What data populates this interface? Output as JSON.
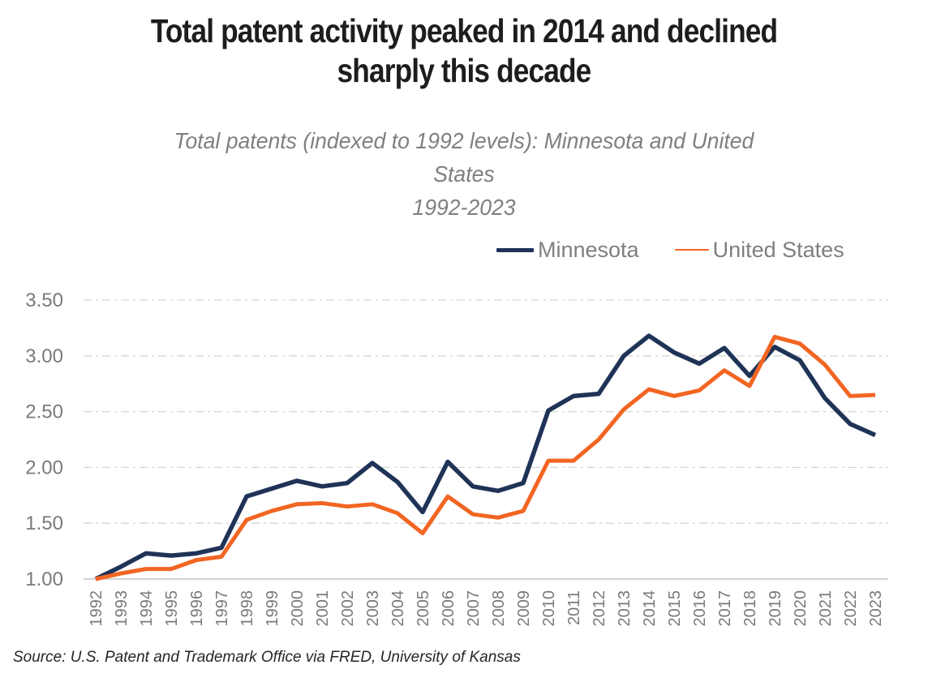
{
  "title": {
    "full_text": "Total patent activity peaked in 2014 and declined sharply this decade",
    "lines": [
      "Total patent activity peaked in 2014 and declined",
      "sharply this decade"
    ]
  },
  "subtitle": {
    "full_text": "Total patents (indexed to 1992 levels): Minnesota and United States",
    "lines": [
      "Total patents (indexed to 1992 levels): Minnesota and United",
      "States"
    ],
    "period": "1992-2023"
  },
  "legend": {
    "items": [
      {
        "label": "Minnesota",
        "color": "#1f3357",
        "swatch": "thick"
      },
      {
        "label": "United States",
        "color": "#f26522",
        "swatch": "thin"
      }
    ]
  },
  "source": "Source: U.S. Patent and Trademark Office via FRED, University of Kansas",
  "chart_data": {
    "type": "line",
    "title": "Total patents (indexed to 1992 levels): Minnesota and United States",
    "period": "1992-2023",
    "x": [
      1992,
      1993,
      1994,
      1995,
      1996,
      1997,
      1998,
      1999,
      2000,
      2001,
      2002,
      2003,
      2004,
      2005,
      2006,
      2007,
      2008,
      2009,
      2010,
      2011,
      2012,
      2013,
      2014,
      2015,
      2016,
      2017,
      2018,
      2019,
      2020,
      2021,
      2022,
      2023
    ],
    "series": [
      {
        "name": "Minnesota",
        "color": "#1f3357",
        "stroke_width": 5.5,
        "values": [
          1.0,
          1.11,
          1.23,
          1.21,
          1.23,
          1.28,
          1.74,
          1.81,
          1.88,
          1.83,
          1.86,
          2.04,
          1.87,
          1.6,
          2.05,
          1.83,
          1.79,
          1.86,
          2.51,
          2.64,
          2.66,
          3.0,
          3.18,
          3.03,
          2.93,
          3.07,
          2.82,
          3.08,
          2.96,
          2.62,
          2.39,
          2.29
        ]
      },
      {
        "name": "United States",
        "color": "#f26522",
        "stroke_width": 5,
        "values": [
          1.0,
          1.05,
          1.09,
          1.09,
          1.17,
          1.2,
          1.53,
          1.61,
          1.67,
          1.68,
          1.65,
          1.67,
          1.59,
          1.41,
          1.74,
          1.58,
          1.55,
          1.61,
          2.06,
          2.06,
          2.25,
          2.52,
          2.7,
          2.64,
          2.69,
          2.87,
          2.73,
          3.17,
          3.11,
          2.92,
          2.64,
          2.65
        ]
      }
    ],
    "ylim": [
      1.0,
      3.5
    ],
    "yticks": [
      {
        "value": 1.0,
        "label": "1.00"
      },
      {
        "value": 1.5,
        "label": "1.50"
      },
      {
        "value": 2.0,
        "label": "2.00"
      },
      {
        "value": 2.5,
        "label": "2.50"
      },
      {
        "value": 3.0,
        "label": "3.00"
      },
      {
        "value": 3.5,
        "label": "3.50"
      }
    ],
    "grid": "horizontal dash-dot",
    "grid_color": "#d6d6d6",
    "axis_color": "#c6c6c6",
    "tick_label_color": "#7a7a7a",
    "legend_position": "top-right",
    "x_label_rotation": -90
  }
}
